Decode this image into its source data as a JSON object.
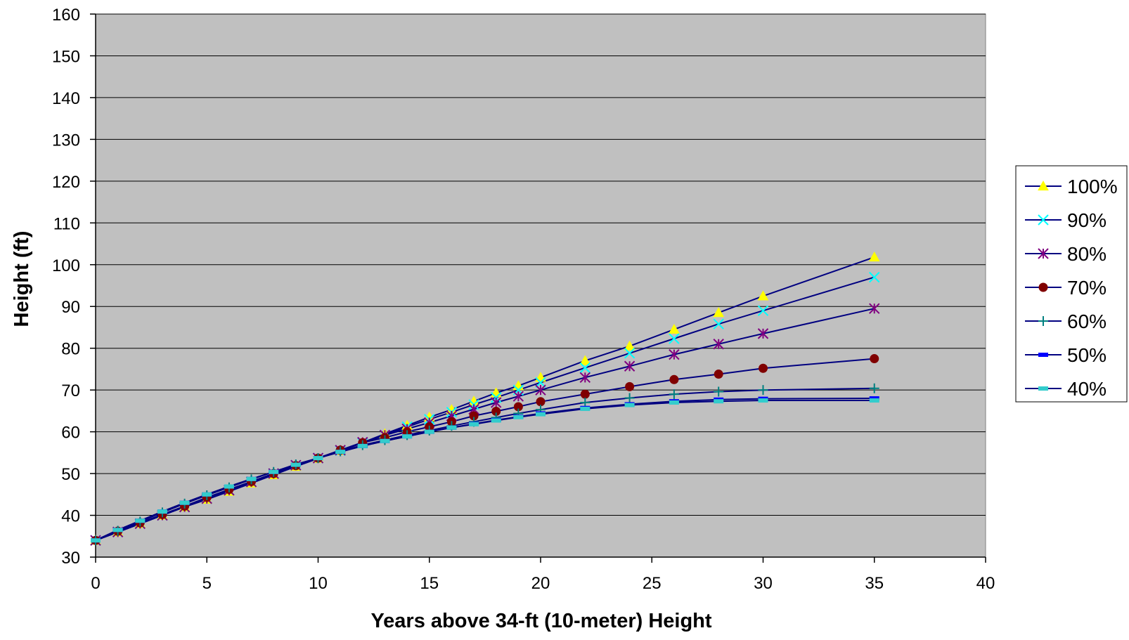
{
  "chart_data": {
    "type": "line",
    "title": "",
    "xlabel": "Years above 34-ft (10-meter) Height",
    "ylabel": "Height (ft)",
    "xlim": [
      0,
      40
    ],
    "ylim": [
      30,
      160
    ],
    "xticks": [
      0,
      5,
      10,
      15,
      20,
      25,
      30,
      35,
      40
    ],
    "yticks": [
      30,
      40,
      50,
      60,
      70,
      80,
      90,
      100,
      110,
      120,
      130,
      140,
      150,
      160
    ],
    "x_tick_labels": [
      "0",
      "5",
      "10",
      "15",
      "20",
      "25",
      "30",
      "35",
      "40"
    ],
    "y_tick_labels": [
      "30",
      "40",
      "50",
      "60",
      "70",
      "80",
      "90",
      "100",
      "110",
      "120",
      "130",
      "140",
      "150",
      "160"
    ],
    "grid": "horizontal",
    "plot_background": "#C0C0C0",
    "line_color": "#000080",
    "legend_position": "right",
    "x": [
      0,
      1,
      2,
      3,
      4,
      5,
      6,
      7,
      8,
      9,
      10,
      11,
      12,
      13,
      14,
      15,
      16,
      17,
      18,
      19,
      20,
      22,
      24,
      26,
      28,
      30,
      35
    ],
    "series": [
      {
        "name": "100%",
        "marker": "triangle",
        "marker_color": "#FFFF00",
        "values": [
          34,
          36,
          38,
          40,
          42,
          43.8,
          45.7,
          47.7,
          49.7,
          51.7,
          53.6,
          55.5,
          57.4,
          59.5,
          61.5,
          63.5,
          65.3,
          67.3,
          69.3,
          71.0,
          73.0,
          77.0,
          80.5,
          84.5,
          88.5,
          92.5,
          101.8
        ]
      },
      {
        "name": "90%",
        "marker": "x",
        "marker_color": "#00FFFF",
        "values": [
          34,
          36,
          38,
          40,
          42,
          44,
          46,
          48,
          50,
          52,
          53.7,
          55.5,
          57.3,
          59.2,
          61.2,
          63,
          64.7,
          66.5,
          68.2,
          70.0,
          71.8,
          75.3,
          78.8,
          82.3,
          85.8,
          89.0,
          97.0
        ]
      },
      {
        "name": "80%",
        "marker": "asterisk",
        "marker_color": "#800080",
        "values": [
          34,
          36,
          38,
          40,
          42,
          44,
          46,
          48,
          50,
          52,
          53.7,
          55.6,
          57.5,
          59.2,
          60.7,
          62.2,
          63.8,
          65.4,
          67.0,
          68.5,
          70.0,
          73.0,
          75.7,
          78.5,
          81.0,
          83.5,
          89.5
        ]
      },
      {
        "name": "70%",
        "marker": "circle",
        "marker_color": "#800000",
        "values": [
          34,
          36.2,
          38.2,
          40.2,
          42.2,
          44.3,
          46.2,
          48.1,
          50.0,
          51.9,
          53.7,
          55.6,
          57.4,
          58.6,
          60.0,
          61.2,
          62.4,
          63.8,
          64.9,
          66.0,
          67.2,
          69.0,
          70.8,
          72.5,
          73.8,
          75.2,
          77.5
        ]
      },
      {
        "name": "60%",
        "marker": "plus",
        "marker_color": "#008080",
        "values": [
          34,
          36.3,
          38.5,
          40.7,
          42.8,
          44.8,
          46.7,
          48.6,
          50.4,
          52.2,
          53.7,
          55.3,
          56.8,
          58.0,
          59.2,
          60.3,
          61.4,
          62.4,
          63.4,
          64.4,
          65.3,
          67.0,
          68.1,
          69.0,
          69.6,
          70.0,
          70.4
        ]
      },
      {
        "name": "50%",
        "marker": "dash",
        "marker_color": "#0000FF",
        "values": [
          34,
          36.5,
          38.7,
          40.9,
          43.0,
          45.0,
          46.9,
          48.7,
          50.4,
          52.1,
          53.7,
          55.2,
          56.6,
          57.8,
          58.9,
          60.0,
          61.0,
          61.9,
          62.8,
          63.6,
          64.4,
          65.7,
          66.6,
          67.3,
          67.7,
          67.9,
          68.0
        ]
      },
      {
        "name": "40%",
        "marker": "dash",
        "marker_color": "#33CCCC",
        "values": [
          34,
          36.5,
          38.7,
          40.9,
          43.0,
          45.0,
          46.9,
          48.7,
          50.4,
          52.1,
          53.7,
          55.2,
          56.6,
          57.8,
          58.9,
          60.0,
          61.0,
          61.8,
          62.7,
          63.5,
          64.2,
          65.5,
          66.4,
          67.0,
          67.3,
          67.5,
          67.5
        ]
      }
    ]
  }
}
